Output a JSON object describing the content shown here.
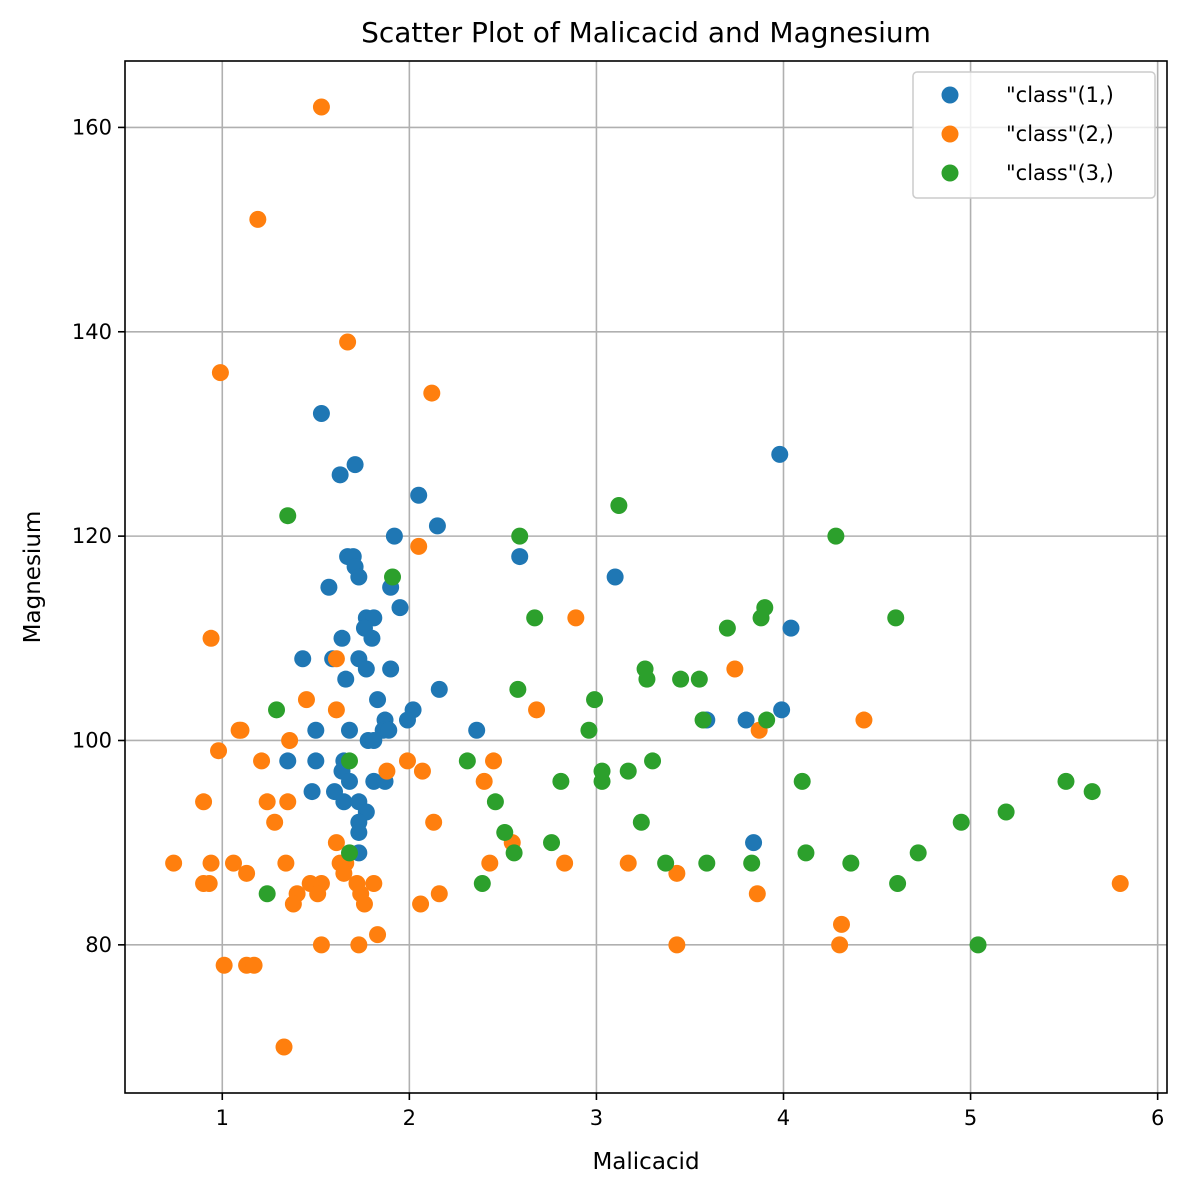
{
  "chart_data": {
    "type": "scatter",
    "title": "Scatter Plot of Malicacid and Magnesium",
    "xlabel": "Malicacid",
    "ylabel": "Magnesium",
    "xlim": [
      0.48,
      6.05
    ],
    "ylim": [
      65.5,
      166.5
    ],
    "x_ticks": [
      1,
      2,
      3,
      4,
      5,
      6
    ],
    "y_ticks": [
      80,
      100,
      120,
      140,
      160
    ],
    "x_tick_labels": [
      "1",
      "2",
      "3",
      "4",
      "5",
      "6"
    ],
    "y_tick_labels": [
      "80",
      "100",
      "120",
      "140",
      "160"
    ],
    "grid": true,
    "legend_position": "top-right",
    "series": [
      {
        "name": "\"class\"(1,)",
        "color": "#1f77b4",
        "points": [
          [
            1.53,
            132
          ],
          [
            1.63,
            126
          ],
          [
            1.71,
            127
          ],
          [
            2.05,
            124
          ],
          [
            2.15,
            121
          ],
          [
            1.92,
            120
          ],
          [
            1.67,
            118
          ],
          [
            1.7,
            118
          ],
          [
            2.59,
            118
          ],
          [
            1.71,
            117
          ],
          [
            1.73,
            116
          ],
          [
            3.1,
            116
          ],
          [
            1.57,
            115
          ],
          [
            1.9,
            115
          ],
          [
            1.95,
            113
          ],
          [
            1.77,
            112
          ],
          [
            1.81,
            112
          ],
          [
            1.76,
            111
          ],
          [
            4.04,
            111
          ],
          [
            1.64,
            110
          ],
          [
            1.8,
            110
          ],
          [
            1.43,
            108
          ],
          [
            1.59,
            108
          ],
          [
            1.73,
            108
          ],
          [
            1.77,
            107
          ],
          [
            1.9,
            107
          ],
          [
            1.66,
            106
          ],
          [
            2.16,
            105
          ],
          [
            1.83,
            104
          ],
          [
            2.02,
            103
          ],
          [
            3.99,
            103
          ],
          [
            1.87,
            102
          ],
          [
            1.99,
            102
          ],
          [
            3.59,
            102
          ],
          [
            3.8,
            102
          ],
          [
            1.5,
            101
          ],
          [
            1.68,
            101
          ],
          [
            1.86,
            101
          ],
          [
            1.89,
            101
          ],
          [
            2.36,
            101
          ],
          [
            1.78,
            100
          ],
          [
            1.81,
            100
          ],
          [
            1.35,
            98
          ],
          [
            1.5,
            98
          ],
          [
            1.65,
            98
          ],
          [
            1.64,
            97
          ],
          [
            1.68,
            96
          ],
          [
            1.81,
            96
          ],
          [
            1.87,
            96
          ],
          [
            1.48,
            95
          ],
          [
            1.6,
            95
          ],
          [
            1.65,
            94
          ],
          [
            1.73,
            94
          ],
          [
            1.77,
            93
          ],
          [
            1.73,
            92
          ],
          [
            1.73,
            91
          ],
          [
            3.84,
            90
          ],
          [
            1.73,
            89
          ],
          [
            3.98,
            128
          ]
        ]
      },
      {
        "name": "\"class\"(2,)",
        "color": "#ff7f0e",
        "points": [
          [
            1.53,
            162
          ],
          [
            1.19,
            151
          ],
          [
            1.67,
            139
          ],
          [
            0.99,
            136
          ],
          [
            2.12,
            134
          ],
          [
            2.05,
            119
          ],
          [
            0.94,
            110
          ],
          [
            1.61,
            108
          ],
          [
            3.74,
            107
          ],
          [
            1.45,
            104
          ],
          [
            1.61,
            103
          ],
          [
            2.68,
            103
          ],
          [
            2.89,
            112
          ],
          [
            4.43,
            102
          ],
          [
            1.09,
            101
          ],
          [
            1.1,
            101
          ],
          [
            3.87,
            101
          ],
          [
            1.36,
            100
          ],
          [
            0.98,
            99
          ],
          [
            1.21,
            98
          ],
          [
            1.99,
            98
          ],
          [
            2.45,
            98
          ],
          [
            1.88,
            97
          ],
          [
            2.07,
            97
          ],
          [
            2.4,
            96
          ],
          [
            0.9,
            94
          ],
          [
            1.24,
            94
          ],
          [
            1.35,
            94
          ],
          [
            1.28,
            92
          ],
          [
            2.13,
            92
          ],
          [
            1.61,
            90
          ],
          [
            2.55,
            90
          ],
          [
            0.74,
            88
          ],
          [
            0.94,
            88
          ],
          [
            1.06,
            88
          ],
          [
            1.34,
            88
          ],
          [
            1.63,
            88
          ],
          [
            1.66,
            88
          ],
          [
            2.43,
            88
          ],
          [
            2.83,
            88
          ],
          [
            3.17,
            88
          ],
          [
            1.13,
            87
          ],
          [
            1.65,
            87
          ],
          [
            3.43,
            87
          ],
          [
            0.9,
            86
          ],
          [
            0.93,
            86
          ],
          [
            1.47,
            86
          ],
          [
            1.53,
            86
          ],
          [
            1.72,
            86
          ],
          [
            1.81,
            86
          ],
          [
            5.8,
            86
          ],
          [
            1.4,
            85
          ],
          [
            1.51,
            85
          ],
          [
            1.74,
            85
          ],
          [
            2.16,
            85
          ],
          [
            3.86,
            85
          ],
          [
            1.38,
            84
          ],
          [
            1.76,
            84
          ],
          [
            2.06,
            84
          ],
          [
            1.83,
            81
          ],
          [
            1.53,
            80
          ],
          [
            1.73,
            80
          ],
          [
            3.43,
            80
          ],
          [
            4.3,
            80
          ],
          [
            4.31,
            82
          ],
          [
            1.01,
            78
          ],
          [
            1.13,
            78
          ],
          [
            1.17,
            78
          ],
          [
            1.33,
            70
          ]
        ]
      },
      {
        "name": "\"class\"(3,)",
        "color": "#2ca02c",
        "points": [
          [
            3.12,
            123
          ],
          [
            1.35,
            122
          ],
          [
            2.59,
            120
          ],
          [
            4.28,
            120
          ],
          [
            1.91,
            116
          ],
          [
            3.9,
            113
          ],
          [
            2.67,
            112
          ],
          [
            3.88,
            112
          ],
          [
            4.6,
            112
          ],
          [
            3.7,
            111
          ],
          [
            3.26,
            107
          ],
          [
            3.27,
            106
          ],
          [
            3.45,
            106
          ],
          [
            3.55,
            106
          ],
          [
            2.58,
            105
          ],
          [
            2.99,
            104
          ],
          [
            1.29,
            103
          ],
          [
            2.96,
            101
          ],
          [
            3.57,
            102
          ],
          [
            3.91,
            102
          ],
          [
            1.68,
            98
          ],
          [
            2.31,
            98
          ],
          [
            3.3,
            98
          ],
          [
            3.03,
            97
          ],
          [
            3.17,
            97
          ],
          [
            2.81,
            96
          ],
          [
            3.03,
            96
          ],
          [
            4.1,
            96
          ],
          [
            5.51,
            96
          ],
          [
            5.65,
            95
          ],
          [
            2.46,
            94
          ],
          [
            5.19,
            93
          ],
          [
            3.24,
            92
          ],
          [
            4.95,
            92
          ],
          [
            2.51,
            91
          ],
          [
            2.76,
            90
          ],
          [
            1.68,
            89
          ],
          [
            2.56,
            89
          ],
          [
            4.12,
            89
          ],
          [
            4.72,
            89
          ],
          [
            3.37,
            88
          ],
          [
            3.59,
            88
          ],
          [
            3.83,
            88
          ],
          [
            4.36,
            88
          ],
          [
            1.24,
            85
          ],
          [
            2.39,
            86
          ],
          [
            4.61,
            86
          ],
          [
            5.04,
            80
          ]
        ]
      }
    ]
  }
}
